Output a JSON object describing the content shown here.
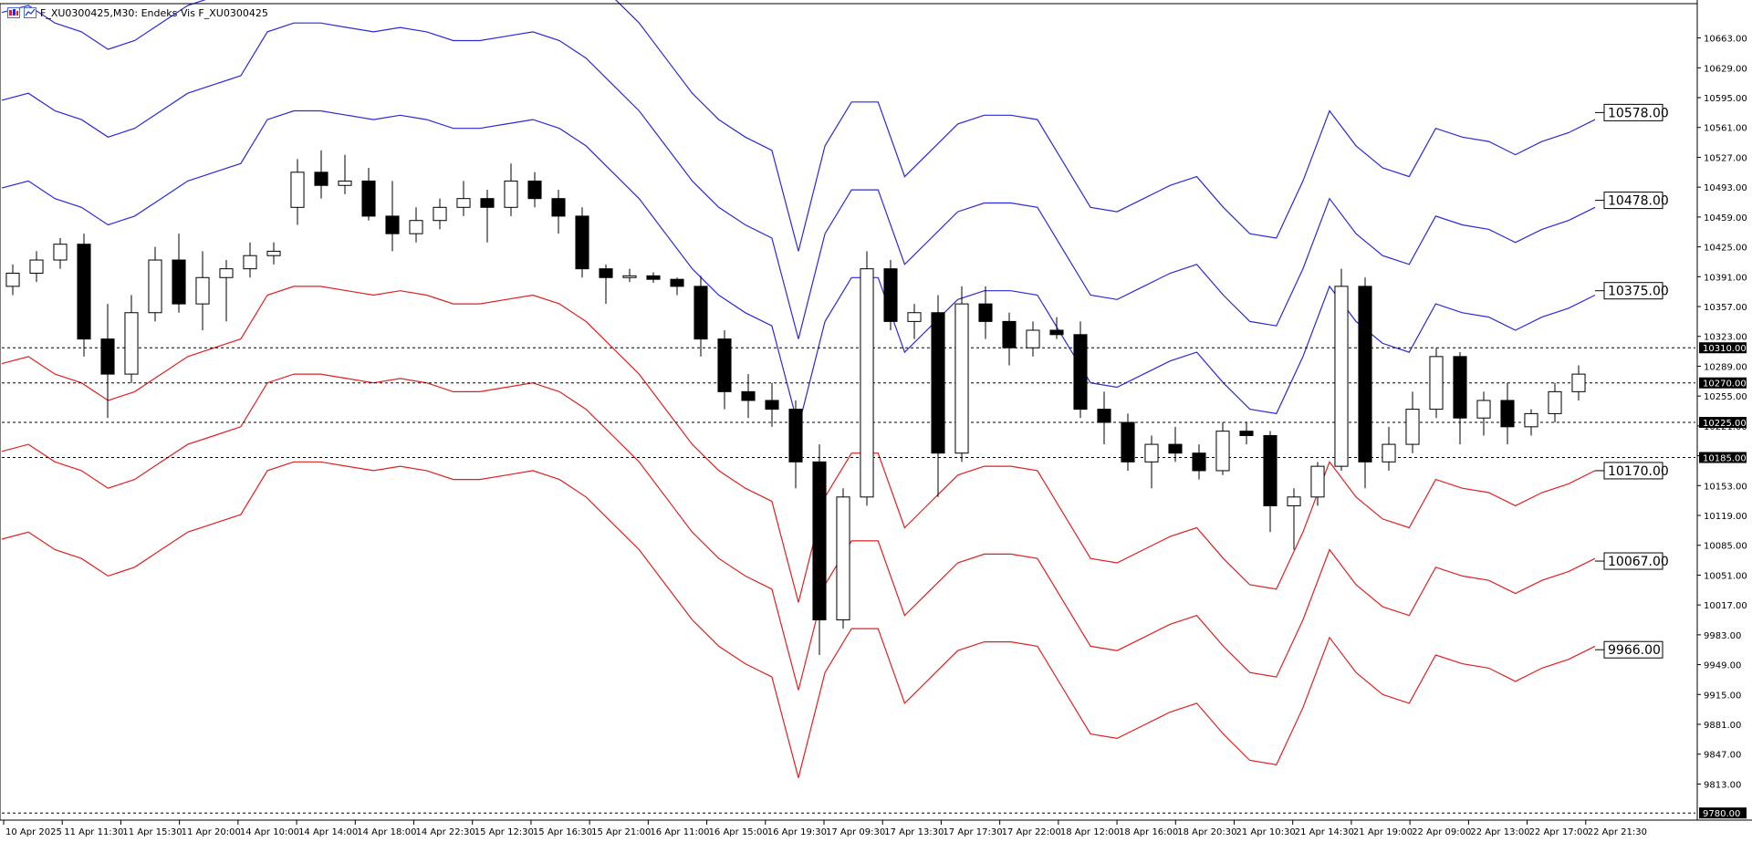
{
  "window": {
    "title": "F_XU0300425,M30:  Endeks Vis F_XU0300425"
  },
  "colors": {
    "upper_bands": "#2a2ad8",
    "lower_bands": "#e02020",
    "candle": "#000000",
    "grid_dash": "#000000",
    "highlight_line": "#c0c0c0"
  },
  "chart_data": {
    "type": "candlestick",
    "title": "F_XU0300425,M30:  Endeks Vis F_XU0300425",
    "xlabel": "",
    "ylabel": "",
    "ylim": [
      9775,
      10700
    ],
    "grid": false,
    "x_ticks": [
      "10 Apr 2025",
      "11 Apr 11:30",
      "11 Apr 15:30",
      "11 Apr 20:00",
      "14 Apr 10:00",
      "14 Apr 14:00",
      "14 Apr 18:00",
      "14 Apr 22:30",
      "15 Apr 12:30",
      "15 Apr 16:30",
      "15 Apr 21:00",
      "16 Apr 11:00",
      "16 Apr 15:00",
      "16 Apr 19:30",
      "17 Apr 09:30",
      "17 Apr 13:30",
      "17 Apr 17:30",
      "17 Apr 22:00",
      "18 Apr 12:00",
      "18 Apr 16:00",
      "18 Apr 20:30",
      "21 Apr 10:30",
      "21 Apr 14:30",
      "21 Apr 19:00",
      "22 Apr 09:00",
      "22 Apr 13:00",
      "22 Apr 17:00",
      "22 Apr 21:30"
    ],
    "y_ticks": [
      10663.0,
      10629.0,
      10595.0,
      10561.0,
      10527.0,
      10493.0,
      10459.0,
      10425.0,
      10391.0,
      10357.0,
      10323.0,
      10289.0,
      10255.0,
      10221.0,
      10187.0,
      10153.0,
      10119.0,
      10085.0,
      10051.0,
      10017.0,
      9983.0,
      9949.0,
      9915.0,
      9881.0,
      9847.0,
      9813.0
    ],
    "horizontal_levels": [
      {
        "value": 10310.0,
        "label": "10310.00"
      },
      {
        "value": 10270.0,
        "label": "10270.00"
      },
      {
        "value": 10225.0,
        "label": "10225.00"
      },
      {
        "value": 10185.0,
        "label": "10185.00"
      },
      {
        "value": 9780.0,
        "label": "9780.00"
      }
    ],
    "band_labels": [
      {
        "value": 10578.0,
        "label": "10578.00",
        "side": "upper"
      },
      {
        "value": 10478.0,
        "label": "10478.00",
        "side": "upper"
      },
      {
        "value": 10375.0,
        "label": "10375.00",
        "side": "upper"
      },
      {
        "value": 10170.0,
        "label": "10170.00",
        "side": "lower"
      },
      {
        "value": 10067.0,
        "label": "10067.00",
        "side": "lower"
      },
      {
        "value": 9966.0,
        "label": "9966.00",
        "side": "lower"
      }
    ],
    "centerline": [
      10392,
      10400,
      10380,
      10370,
      10350,
      10360,
      10380,
      10400,
      10410,
      10420,
      10470,
      10480,
      10480,
      10475,
      10470,
      10475,
      10470,
      10460,
      10460,
      10465,
      10470,
      10460,
      10440,
      10410,
      10380,
      10340,
      10300,
      10270,
      10250,
      10235,
      10120,
      10240,
      10290,
      10290,
      10205,
      10235,
      10265,
      10275,
      10275,
      10270,
      10220,
      10170,
      10165,
      10180,
      10195,
      10205,
      10170,
      10140,
      10135,
      10200,
      10280,
      10240,
      10215,
      10205,
      10260,
      10250,
      10245,
      10230,
      10245,
      10255,
      10270
    ],
    "band_offsets": [
      100,
      200,
      300
    ],
    "candles": [
      [
        10380,
        10405,
        10370,
        10395
      ],
      [
        10395,
        10420,
        10385,
        10410
      ],
      [
        10410,
        10435,
        10400,
        10428
      ],
      [
        10428,
        10440,
        10300,
        10320
      ],
      [
        10320,
        10360,
        10230,
        10280
      ],
      [
        10280,
        10370,
        10270,
        10350
      ],
      [
        10350,
        10425,
        10340,
        10410
      ],
      [
        10410,
        10440,
        10350,
        10360
      ],
      [
        10360,
        10420,
        10330,
        10390
      ],
      [
        10390,
        10410,
        10340,
        10400
      ],
      [
        10400,
        10430,
        10390,
        10415
      ],
      [
        10415,
        10430,
        10405,
        10420
      ],
      [
        10470,
        10525,
        10450,
        10510
      ],
      [
        10510,
        10535,
        10480,
        10495
      ],
      [
        10495,
        10530,
        10485,
        10500
      ],
      [
        10500,
        10515,
        10455,
        10460
      ],
      [
        10460,
        10500,
        10420,
        10440
      ],
      [
        10440,
        10470,
        10430,
        10455
      ],
      [
        10455,
        10480,
        10445,
        10470
      ],
      [
        10470,
        10500,
        10460,
        10480
      ],
      [
        10480,
        10490,
        10430,
        10470
      ],
      [
        10470,
        10520,
        10460,
        10500
      ],
      [
        10500,
        10510,
        10470,
        10480
      ],
      [
        10480,
        10490,
        10440,
        10460
      ],
      [
        10460,
        10470,
        10390,
        10400
      ],
      [
        10400,
        10405,
        10360,
        10390
      ],
      [
        10390,
        10400,
        10385,
        10392
      ],
      [
        10392,
        10396,
        10384,
        10388
      ],
      [
        10388,
        10390,
        10370,
        10380
      ],
      [
        10380,
        10392,
        10300,
        10320
      ],
      [
        10320,
        10330,
        10240,
        10260
      ],
      [
        10260,
        10280,
        10230,
        10250
      ],
      [
        10250,
        10270,
        10220,
        10240
      ],
      [
        10240,
        10250,
        10150,
        10180
      ],
      [
        10180,
        10200,
        9960,
        10000
      ],
      [
        10000,
        10150,
        9990,
        10140
      ],
      [
        10140,
        10420,
        10130,
        10400
      ],
      [
        10400,
        10410,
        10330,
        10340
      ],
      [
        10340,
        10360,
        10320,
        10350
      ],
      [
        10350,
        10370,
        10140,
        10190
      ],
      [
        10190,
        10380,
        10180,
        10360
      ],
      [
        10360,
        10380,
        10320,
        10340
      ],
      [
        10340,
        10350,
        10290,
        10310
      ],
      [
        10310,
        10340,
        10300,
        10330
      ],
      [
        10330,
        10345,
        10320,
        10325
      ],
      [
        10325,
        10340,
        10230,
        10240
      ],
      [
        10240,
        10260,
        10200,
        10225
      ],
      [
        10225,
        10235,
        10170,
        10180
      ],
      [
        10180,
        10210,
        10150,
        10200
      ],
      [
        10200,
        10220,
        10180,
        10190
      ],
      [
        10190,
        10200,
        10160,
        10170
      ],
      [
        10170,
        10225,
        10165,
        10215
      ],
      [
        10215,
        10225,
        10200,
        10210
      ],
      [
        10210,
        10215,
        10100,
        10130
      ],
      [
        10130,
        10150,
        10080,
        10140
      ],
      [
        10140,
        10180,
        10130,
        10175
      ],
      [
        10175,
        10400,
        10170,
        10380
      ],
      [
        10380,
        10390,
        10150,
        10180
      ],
      [
        10180,
        10220,
        10170,
        10200
      ],
      [
        10200,
        10260,
        10190,
        10240
      ],
      [
        10240,
        10310,
        10230,
        10300
      ],
      [
        10300,
        10305,
        10200,
        10230
      ],
      [
        10230,
        10260,
        10210,
        10250
      ],
      [
        10250,
        10270,
        10200,
        10220
      ],
      [
        10220,
        10240,
        10210,
        10235
      ],
      [
        10235,
        10270,
        10225,
        10260
      ],
      [
        10260,
        10290,
        10250,
        10280
      ]
    ]
  }
}
